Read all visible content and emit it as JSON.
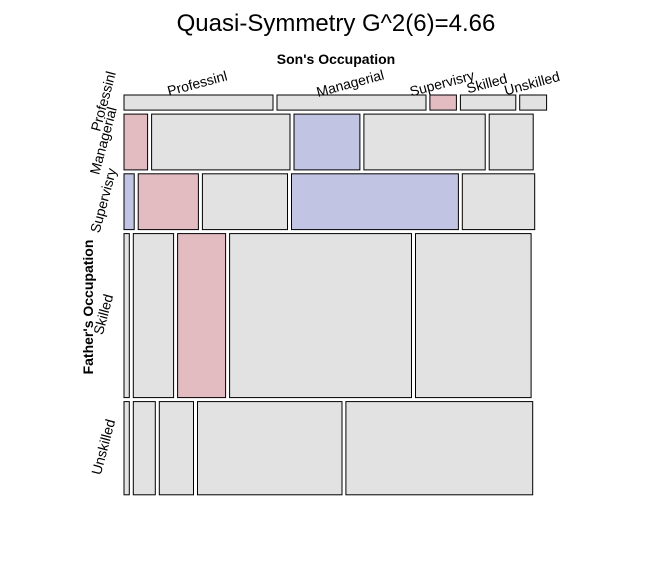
{
  "chart_data": {
    "type": "mosaic",
    "title": "Quasi-Symmetry G^2(6)=4.66",
    "xlabel": "Son's Occupation",
    "ylabel": "Father's Occupation",
    "col_categories": [
      "Professinl",
      "Managerial",
      "Supervisry",
      "Skilled",
      "Unskilled"
    ],
    "row_categories": [
      "Professinl",
      "Managerial",
      "Supervisry",
      "Skilled",
      "Unskilled"
    ],
    "row_labels": [
      "Professinl",
      "Managerial",
      "Supervisry",
      "Skilled",
      "Unskilled"
    ],
    "row_proportions": [
      0.037,
      0.137,
      0.137,
      0.403,
      0.229
    ],
    "cells": [
      [
        0.366,
        0.366,
        0.065,
        0.136,
        0.066
      ],
      [
        0.058,
        0.34,
        0.162,
        0.298,
        0.108
      ],
      [
        0.025,
        0.148,
        0.209,
        0.41,
        0.178
      ],
      [
        0.013,
        0.099,
        0.118,
        0.447,
        0.284
      ],
      [
        0.013,
        0.054,
        0.084,
        0.355,
        0.459
      ]
    ],
    "residual_sign": [
      [
        "neutral",
        "neutral",
        "positive",
        "neutral",
        "neutral"
      ],
      [
        "positive",
        "neutral",
        "negative",
        "neutral",
        "neutral"
      ],
      [
        "negative",
        "positive",
        "neutral",
        "negative",
        "neutral"
      ],
      [
        "neutral",
        "neutral",
        "positive",
        "neutral",
        "neutral"
      ],
      [
        "neutral",
        "neutral",
        "neutral",
        "neutral",
        "neutral"
      ]
    ],
    "colors": {
      "neutral": "#e2e2e2",
      "positive": "#e3bcc2",
      "negative": "#c1c5e3",
      "stroke": "#000000"
    }
  }
}
